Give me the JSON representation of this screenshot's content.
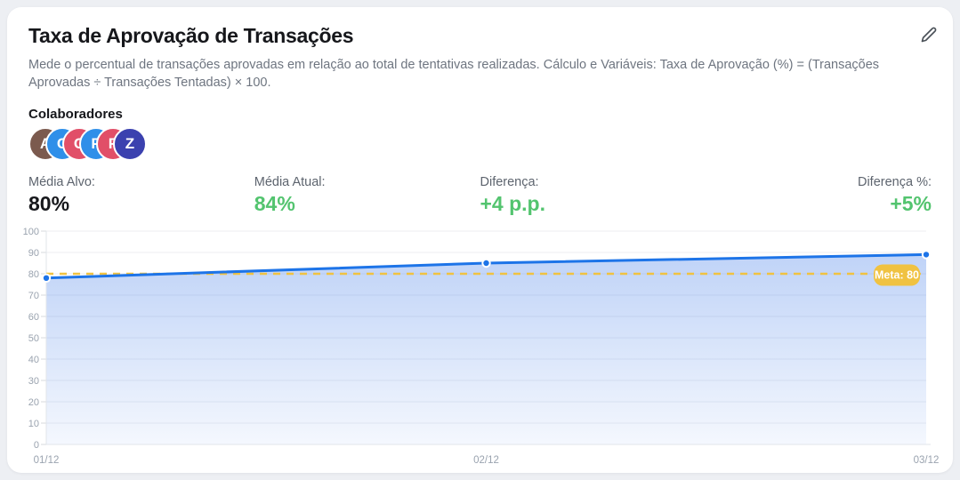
{
  "page": {
    "background": "#edeff3"
  },
  "card": {
    "title": "Taxa de Aprovação de Transações",
    "description": "Mede o percentual de transações aprovadas em relação ao total de tentativas realizadas. Cálculo e Variáveis: Taxa de Aprovação (%) = (Transações Aprovadas ÷ Transações Tentadas) × 100.",
    "edit_icon": "pencil",
    "collaborators": {
      "label": "Colaboradores",
      "avatars": [
        {
          "initial": "A",
          "color": "#7b5a4e"
        },
        {
          "initial": "C",
          "color": "#2f8fe9"
        },
        {
          "initial": "C",
          "color": "#e14f68"
        },
        {
          "initial": "P",
          "color": "#2f8fe9"
        },
        {
          "initial": "F",
          "color": "#e14f68"
        },
        {
          "initial": "Z",
          "color": "#3b41af"
        }
      ]
    },
    "metrics": [
      {
        "label": "Média Alvo:",
        "value": "80%",
        "color": "#17181c"
      },
      {
        "label": "Média Atual:",
        "value": "84%",
        "color": "#53c46f"
      },
      {
        "label": "Diferença:",
        "value": "+4 p.p.",
        "color": "#53c46f"
      },
      {
        "label": "Diferença %:",
        "value": "+5%",
        "color": "#53c46f"
      }
    ]
  },
  "chart_data": {
    "type": "line",
    "title": "Taxa de Aprovação de Transações",
    "x": [
      "01/12",
      "02/12",
      "03/12"
    ],
    "series": [
      {
        "name": "Taxa de Aprovação (%)",
        "values": [
          78,
          85,
          89
        ],
        "color": "#1d74e8"
      }
    ],
    "target_line": {
      "value": 80,
      "label": "Meta: 80",
      "color": "#f0c241"
    },
    "ylim": [
      0,
      100
    ],
    "ytick_step": 10,
    "grid": true,
    "legend": "none",
    "colors": {
      "area_top": "rgba(45,110,230,0.30)",
      "area_bottom": "rgba(45,110,230,0.05)",
      "axis_text": "#9aa3af",
      "grid_line": "#eceef2",
      "axis_line": "#e2e5ea",
      "tick": "#d7dade",
      "point_ring": "#ffffff"
    }
  }
}
